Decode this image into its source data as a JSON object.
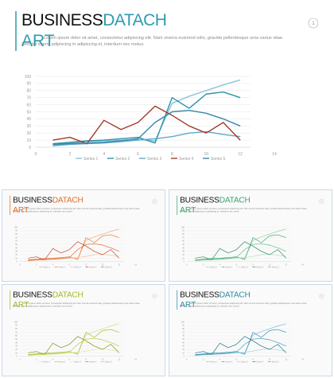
{
  "slides": [
    {
      "title_black": "BUSINESS",
      "title_color": "DATACH",
      "title_line2": "ART",
      "accent": "#2e9ab0",
      "page": "1",
      "body": "Lorem ipsum dolor sit amet, consectetur adipiscing elit. Nam viverra euismod odio, gravida pellentesque urna varius vitae. Sed dui lorem, adipiscing in adipiscing et, interdum nec metus.",
      "chart": {
        "type": "line",
        "x": [
          1,
          2,
          3,
          4,
          5,
          6,
          7,
          8,
          9,
          10,
          11,
          12
        ],
        "xlim": [
          0,
          14
        ],
        "ylim": [
          0,
          100
        ],
        "xticks": [
          0,
          2,
          4,
          6,
          8,
          10,
          12,
          14
        ],
        "yticks": [
          0,
          10,
          20,
          30,
          40,
          50,
          60,
          70,
          80,
          90,
          100
        ],
        "grid": true,
        "series": [
          {
            "name": "Series 1",
            "color": "#8cc3dc",
            "values": [
              3,
              6,
              8,
              9,
              10,
              11,
              9,
              62,
              72,
              80,
              88,
              95
            ]
          },
          {
            "name": "Series 2",
            "color": "#2e93a8",
            "values": [
              5,
              7,
              9,
              10,
              12,
              14,
              6,
              70,
              55,
              75,
              78,
              70
            ]
          },
          {
            "name": "Series 3",
            "color": "#5aaacb",
            "values": [
              2,
              4,
              5,
              6,
              8,
              10,
              12,
              15,
              20,
              22,
              18,
              15
            ]
          },
          {
            "name": "Series 4",
            "color": "#a33a2a",
            "values": [
              10,
              14,
              5,
              38,
              25,
              35,
              58,
              45,
              30,
              20,
              35,
              10
            ]
          },
          {
            "name": "Series 5",
            "color": "#3a86a8",
            "values": [
              4,
              5,
              6,
              7,
              9,
              12,
              35,
              50,
              52,
              48,
              40,
              30
            ]
          }
        ]
      }
    },
    {
      "title_black": "BUSINESS",
      "title_color": "DATACH",
      "title_line2": "ART",
      "accent": "#e06d2b",
      "page": "2",
      "body": "Lorem ipsum dolor sit amet, consectetur adipiscing elit. Nam viverra euismod odio, gravida pellentesque urna varius vitae. Sed dui lorem, adipiscing in adipiscing et, interdum nec metus.",
      "chart": {
        "type": "line",
        "x": [
          1,
          2,
          3,
          4,
          5,
          6,
          7,
          8,
          9,
          10,
          11,
          12
        ],
        "xlim": [
          0,
          14
        ],
        "ylim": [
          0,
          100
        ],
        "xticks": [
          0,
          2,
          4,
          6,
          8,
          10,
          12,
          14
        ],
        "yticks": [
          0,
          10,
          20,
          30,
          40,
          50,
          60,
          70,
          80,
          90,
          100
        ],
        "grid": true,
        "series": [
          {
            "name": "Series 1",
            "color": "#f3a874",
            "values": [
              3,
              6,
              8,
              9,
              10,
              11,
              9,
              62,
              72,
              80,
              88,
              95
            ]
          },
          {
            "name": "Series 2",
            "color": "#e8742f",
            "values": [
              5,
              7,
              9,
              10,
              12,
              14,
              6,
              70,
              55,
              75,
              78,
              70
            ]
          },
          {
            "name": "Series 3",
            "color": "#f6c39e",
            "values": [
              2,
              4,
              5,
              6,
              8,
              10,
              12,
              15,
              20,
              22,
              18,
              15
            ]
          },
          {
            "name": "Series 4",
            "color": "#c9402b",
            "values": [
              10,
              14,
              5,
              38,
              25,
              35,
              58,
              45,
              30,
              20,
              35,
              10
            ]
          },
          {
            "name": "Series 5",
            "color": "#d9652b",
            "values": [
              4,
              5,
              6,
              7,
              9,
              12,
              35,
              50,
              52,
              48,
              40,
              30
            ]
          }
        ]
      }
    },
    {
      "title_black": "BUSINESS",
      "title_color": "DATACH",
      "title_line2": "ART",
      "accent": "#3aa76d",
      "page": "3",
      "body": "Lorem ipsum dolor sit amet, consectetur adipiscing elit. Nam viverra euismod odio, gravida pellentesque urna varius vitae. Sed dui lorem, adipiscing in adipiscing et, interdum nec metus.",
      "chart": {
        "type": "line",
        "x": [
          1,
          2,
          3,
          4,
          5,
          6,
          7,
          8,
          9,
          10,
          11,
          12
        ],
        "xlim": [
          0,
          14
        ],
        "ylim": [
          0,
          100
        ],
        "xticks": [
          0,
          2,
          4,
          6,
          8,
          10,
          12,
          14
        ],
        "yticks": [
          0,
          10,
          20,
          30,
          40,
          50,
          60,
          70,
          80,
          90,
          100
        ],
        "grid": true,
        "series": [
          {
            "name": "Series 1",
            "color": "#8fd1a8",
            "values": [
              3,
              6,
              8,
              9,
              10,
              11,
              9,
              62,
              72,
              80,
              88,
              95
            ]
          },
          {
            "name": "Series 2",
            "color": "#3aa76d",
            "values": [
              5,
              7,
              9,
              10,
              12,
              14,
              6,
              70,
              55,
              75,
              78,
              70
            ]
          },
          {
            "name": "Series 3",
            "color": "#b5e0c4",
            "values": [
              2,
              4,
              5,
              6,
              8,
              10,
              12,
              15,
              20,
              22,
              18,
              15
            ]
          },
          {
            "name": "Series 4",
            "color": "#2f8a58",
            "values": [
              10,
              14,
              5,
              38,
              25,
              35,
              58,
              45,
              30,
              20,
              35,
              10
            ]
          },
          {
            "name": "Series 5",
            "color": "#5cbf85",
            "values": [
              4,
              5,
              6,
              7,
              9,
              12,
              35,
              50,
              52,
              48,
              40,
              30
            ]
          }
        ]
      }
    },
    {
      "title_black": "BUSINESS",
      "title_color": "DATACH",
      "title_line2": "ART",
      "accent": "#a8b92a",
      "page": "4",
      "body": "Lorem ipsum dolor sit amet, consectetur adipiscing elit. Nam viverra euismod odio, gravida pellentesque urna varius vitae. Sed dui lorem, adipiscing in adipiscing et, interdum nec metus.",
      "chart": {
        "type": "line",
        "x": [
          1,
          2,
          3,
          4,
          5,
          6,
          7,
          8,
          9,
          10,
          11,
          12
        ],
        "xlim": [
          0,
          14
        ],
        "ylim": [
          0,
          100
        ],
        "xticks": [
          0,
          2,
          4,
          6,
          8,
          10,
          12,
          14
        ],
        "yticks": [
          0,
          10,
          20,
          30,
          40,
          50,
          60,
          70,
          80,
          90,
          100
        ],
        "grid": true,
        "series": [
          {
            "name": "Series 1",
            "color": "#d4dc7a",
            "values": [
              3,
              6,
              8,
              9,
              10,
              11,
              9,
              62,
              72,
              80,
              88,
              95
            ]
          },
          {
            "name": "Series 2",
            "color": "#a8b92a",
            "values": [
              5,
              7,
              9,
              10,
              12,
              14,
              6,
              70,
              55,
              75,
              78,
              70
            ]
          },
          {
            "name": "Series 3",
            "color": "#e3e8a8",
            "values": [
              2,
              4,
              5,
              6,
              8,
              10,
              12,
              15,
              20,
              22,
              18,
              15
            ]
          },
          {
            "name": "Series 4",
            "color": "#7f8f1c",
            "values": [
              10,
              14,
              5,
              38,
              25,
              35,
              58,
              45,
              30,
              20,
              35,
              10
            ]
          },
          {
            "name": "Series 5",
            "color": "#bccb3c",
            "values": [
              4,
              5,
              6,
              7,
              9,
              12,
              35,
              50,
              52,
              48,
              40,
              30
            ]
          }
        ]
      }
    },
    {
      "title_black": "BUSINESS",
      "title_color": "DATACH",
      "title_line2": "ART",
      "accent": "#2a8fa8",
      "page": "5",
      "body": "Lorem ipsum dolor sit amet, consectetur adipiscing elit. Nam viverra euismod odio, gravida pellentesque urna varius vitae. Sed dui lorem, adipiscing in adipiscing et, interdum nec metus.",
      "chart": {
        "type": "line",
        "x": [
          1,
          2,
          3,
          4,
          5,
          6,
          7,
          8,
          9,
          10,
          11,
          12
        ],
        "xlim": [
          0,
          14
        ],
        "ylim": [
          0,
          100
        ],
        "xticks": [
          0,
          2,
          4,
          6,
          8,
          10,
          12,
          14
        ],
        "yticks": [
          0,
          10,
          20,
          30,
          40,
          50,
          60,
          70,
          80,
          90,
          100
        ],
        "grid": true,
        "series": [
          {
            "name": "Series 1",
            "color": "#7fb9d6",
            "values": [
              3,
              6,
              8,
              9,
              10,
              11,
              9,
              62,
              72,
              80,
              88,
              95
            ]
          },
          {
            "name": "Series 2",
            "color": "#2a8fa8",
            "values": [
              5,
              7,
              9,
              10,
              12,
              14,
              6,
              70,
              55,
              75,
              78,
              70
            ]
          },
          {
            "name": "Series 3",
            "color": "#a9d3e6",
            "values": [
              2,
              4,
              5,
              6,
              8,
              10,
              12,
              15,
              20,
              22,
              18,
              15
            ]
          },
          {
            "name": "Series 4",
            "color": "#1f6f88",
            "values": [
              10,
              14,
              5,
              38,
              25,
              35,
              58,
              45,
              30,
              20,
              35,
              10
            ]
          },
          {
            "name": "Series 5",
            "color": "#3f9fc0",
            "values": [
              4,
              5,
              6,
              7,
              9,
              12,
              35,
              50,
              52,
              48,
              40,
              30
            ]
          }
        ]
      }
    }
  ]
}
